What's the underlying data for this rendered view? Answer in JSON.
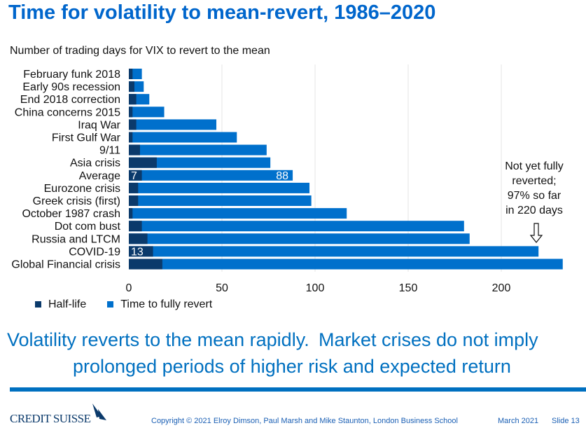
{
  "title": "Time for volatility to mean-revert, 1986–2020",
  "subtitle": "Number of trading days for VIX to revert to the mean",
  "chart_data": {
    "type": "bar",
    "orientation": "horizontal",
    "stacked": "overlay",
    "categories": [
      "February funk 2018",
      "Early 90s recession",
      "End 2018 correction",
      "China concerns 2015",
      "Iraq War",
      "First Gulf War",
      "9/11",
      "Asia crisis",
      "Average",
      "Eurozone crisis",
      "Greek crisis (first)",
      "October 1987 crash",
      "Dot com bust",
      "Russia and LTCM",
      "COVID-19",
      "Global Financial crisis"
    ],
    "series": [
      {
        "name": "Half-life",
        "color": "#0b3a6b",
        "values": [
          2,
          3,
          4,
          2,
          4,
          2,
          6,
          15,
          7,
          5,
          5,
          2,
          7,
          10,
          13,
          18
        ]
      },
      {
        "name": "Time to fully revert",
        "color": "#0070cc",
        "values": [
          7,
          8,
          11,
          19,
          47,
          58,
          74,
          76,
          88,
          97,
          98,
          117,
          180,
          183,
          220,
          233
        ]
      }
    ],
    "data_labels": [
      {
        "category": "Average",
        "series": "Half-life",
        "text": "7"
      },
      {
        "category": "Average",
        "series": "Time to fully revert",
        "text": "88"
      },
      {
        "category": "COVID-19",
        "series": "Half-life",
        "text": "13"
      }
    ],
    "xticks": [
      "0",
      "50",
      "100",
      "150",
      "200"
    ],
    "xlim": [
      0,
      235
    ],
    "grid": true,
    "legend_position": "bottom-left",
    "annotation": [
      "Not yet fully",
      "reverted;",
      "97% so far",
      "in 220 days"
    ]
  },
  "message": {
    "part1": "Volatility reverts to the mean rapidly.",
    "part2": "Market crises do not imply",
    "part3": "prolonged periods of higher risk and expected return"
  },
  "footer": {
    "logo": "CREDIT SUISSE",
    "copyright": "Copyright © 2021 Elroy Dimson, Paul Marsh and Mike Staunton, London Business School",
    "date": "March 2021",
    "slide": "Slide 13"
  }
}
